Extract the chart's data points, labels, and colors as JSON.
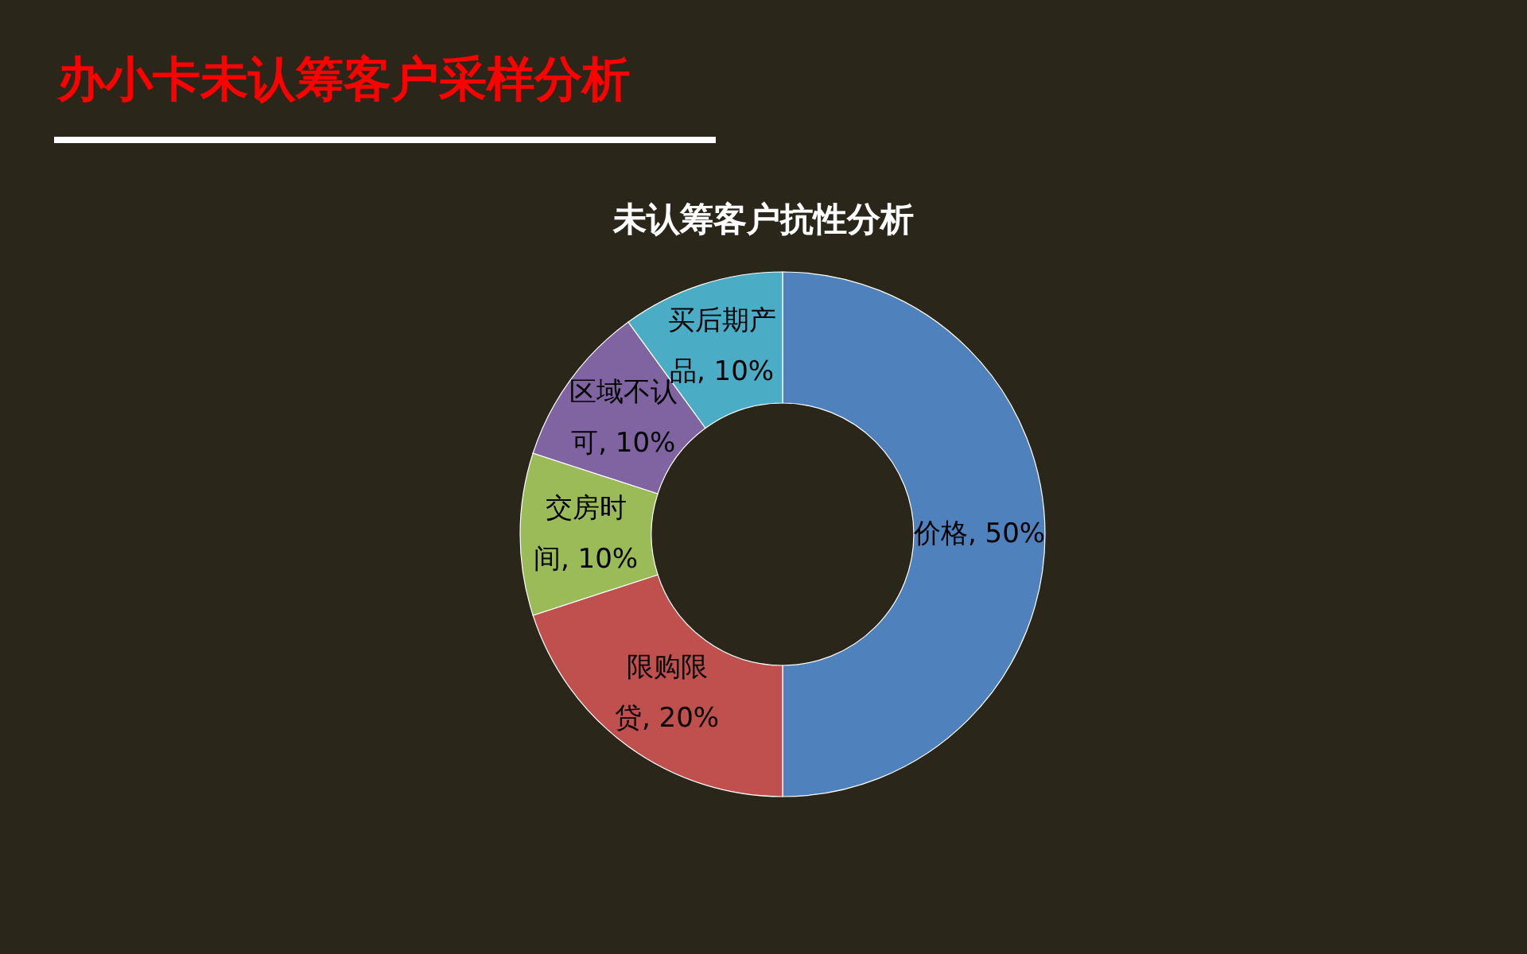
{
  "chart_data": {
    "type": "donut",
    "title": "办小卡未认筹客户采样分析",
    "subtitle": "未认筹客户抗性分析",
    "categories": [
      "价格",
      "限购限贷",
      "交房时间",
      "区域不认可",
      "买后期产品"
    ],
    "values": [
      50,
      20,
      10,
      10,
      10
    ],
    "value_labels": [
      "50%",
      "20%",
      "10%",
      "10%",
      "10%"
    ],
    "colors": [
      "#4f81bd",
      "#c0504d",
      "#9bbb59",
      "#8064a2",
      "#4bacc6"
    ]
  }
}
